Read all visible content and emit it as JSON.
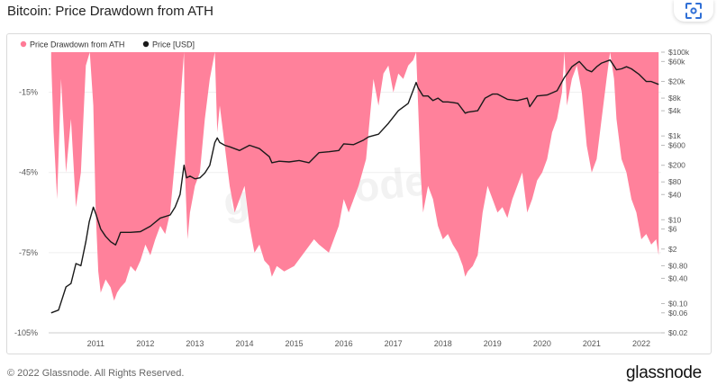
{
  "header": {
    "title": "Bitcoin: Price Drawdown from ATH"
  },
  "footer": {
    "copyright": "© 2022 Glassnode. All Rights Reserved.",
    "logo_text": "glassnode"
  },
  "watermark": "glassnode",
  "icons": {
    "scan": "scan-qr-icon"
  },
  "colors": {
    "drawdown": "#ff7a96",
    "price": "#1a1a1a"
  },
  "chart_data": {
    "type": "area",
    "title": "Bitcoin: Price Drawdown from ATH",
    "legend_position": "top-left",
    "legend": [
      {
        "name": "Price Drawdown from ATH",
        "color": "#ff7a96"
      },
      {
        "name": "Price [USD]",
        "color": "#1a1a1a"
      }
    ],
    "x_ticks": [
      "2011",
      "2012",
      "2013",
      "2014",
      "2015",
      "2016",
      "2017",
      "2018",
      "2019",
      "2020",
      "2021",
      "2022"
    ],
    "y_left_ticks": [
      "-15%",
      "-45%",
      "-75%",
      "-105%"
    ],
    "y_left_range": [
      -105,
      0
    ],
    "y_right_ticks": [
      "$100k",
      "$60k",
      "$20k",
      "$8k",
      "$4k",
      "$1k",
      "$600",
      "$200",
      "$80",
      "$40",
      "$10",
      "$6",
      "$2",
      "$0.80",
      "$0.40",
      "$0.10",
      "$0.06",
      "$0.02"
    ],
    "y_right_scale": "log",
    "y_right_range": [
      0.02,
      100000
    ],
    "series": [
      {
        "name": "Price Drawdown from ATH",
        "unit": "%",
        "x": [
          2010.6,
          2010.65,
          2010.72,
          2010.8,
          2010.9,
          2011.0,
          2011.1,
          2011.2,
          2011.3,
          2011.38,
          2011.45,
          2011.5,
          2011.55,
          2011.6,
          2011.7,
          2011.8,
          2011.87,
          2011.93,
          2012.0,
          2012.1,
          2012.2,
          2012.3,
          2012.4,
          2012.5,
          2012.6,
          2012.7,
          2012.8,
          2012.9,
          2013.0,
          2013.1,
          2013.2,
          2013.28,
          2013.3,
          2013.35,
          2013.4,
          2013.5,
          2013.6,
          2013.7,
          2013.8,
          2013.9,
          2013.95,
          2014.0,
          2014.1,
          2014.2,
          2014.3,
          2014.4,
          2014.5,
          2014.6,
          2014.7,
          2014.8,
          2014.9,
          2015.0,
          2015.05,
          2015.15,
          2015.3,
          2015.5,
          2015.7,
          2015.9,
          2016.0,
          2016.2,
          2016.4,
          2016.5,
          2016.6,
          2016.8,
          2016.95,
          2017.0,
          2017.1,
          2017.2,
          2017.3,
          2017.4,
          2017.5,
          2017.6,
          2017.7,
          2017.8,
          2017.9,
          2017.96,
          2018.0,
          2018.05,
          2018.1,
          2018.2,
          2018.3,
          2018.4,
          2018.5,
          2018.6,
          2018.7,
          2018.8,
          2018.9,
          2018.95,
          2019.0,
          2019.1,
          2019.2,
          2019.3,
          2019.4,
          2019.5,
          2019.6,
          2019.7,
          2019.8,
          2019.9,
          2020.0,
          2020.1,
          2020.2,
          2020.3,
          2020.4,
          2020.5,
          2020.6,
          2020.7,
          2020.8,
          2020.9,
          2020.95,
          2021.0,
          2021.1,
          2021.2,
          2021.3,
          2021.4,
          2021.5,
          2021.6,
          2021.7,
          2021.8,
          2021.87,
          2021.95,
          2022.0,
          2022.1,
          2022.2,
          2022.3,
          2022.4,
          2022.45,
          2022.5,
          2022.6,
          2022.7,
          2022.8,
          2022.85
        ],
        "values": [
          -3,
          -30,
          -55,
          -10,
          -45,
          -25,
          -58,
          -45,
          -5,
          0,
          -20,
          -60,
          -82,
          -90,
          -85,
          -88,
          -93,
          -90,
          -88,
          -86,
          -80,
          -82,
          -78,
          -72,
          -76,
          -70,
          -65,
          -68,
          -60,
          -40,
          -20,
          0,
          -45,
          -70,
          -60,
          -50,
          -45,
          -25,
          -10,
          0,
          -30,
          -20,
          -35,
          -50,
          -60,
          -55,
          -50,
          -65,
          -75,
          -72,
          -78,
          -80,
          -84,
          -80,
          -82,
          -80,
          -75,
          -70,
          -72,
          -75,
          -65,
          -55,
          -60,
          -50,
          -40,
          -30,
          -10,
          -20,
          -8,
          -5,
          -15,
          -8,
          -10,
          -5,
          -3,
          0,
          -20,
          -45,
          -60,
          -50,
          -55,
          -65,
          -70,
          -68,
          -72,
          -75,
          -80,
          -84,
          -82,
          -80,
          -76,
          -60,
          -50,
          -55,
          -60,
          -58,
          -62,
          -55,
          -50,
          -45,
          -60,
          -55,
          -48,
          -45,
          -40,
          -30,
          -25,
          -15,
          0,
          -20,
          -10,
          -5,
          -15,
          -35,
          -45,
          -40,
          -25,
          -10,
          0,
          -10,
          -25,
          -40,
          -45,
          -55,
          -60,
          -65,
          -70,
          -68,
          -72,
          -70,
          -76
        ]
      },
      {
        "name": "Price [USD]",
        "unit": "USD",
        "x": [
          2010.6,
          2010.75,
          2010.9,
          2011.0,
          2011.1,
          2011.2,
          2011.3,
          2011.37,
          2011.45,
          2011.5,
          2011.6,
          2011.7,
          2011.8,
          2011.9,
          2011.95,
          2012.0,
          2012.2,
          2012.4,
          2012.6,
          2012.8,
          2013.0,
          2013.1,
          2013.2,
          2013.28,
          2013.33,
          2013.4,
          2013.5,
          2013.6,
          2013.7,
          2013.8,
          2013.9,
          2013.95,
          2014.0,
          2014.1,
          2014.2,
          2014.4,
          2014.6,
          2014.8,
          2015.0,
          2015.05,
          2015.2,
          2015.4,
          2015.6,
          2015.8,
          2016.0,
          2016.2,
          2016.4,
          2016.5,
          2016.7,
          2016.9,
          2017.0,
          2017.2,
          2017.4,
          2017.6,
          2017.8,
          2017.96,
          2018.0,
          2018.1,
          2018.2,
          2018.3,
          2018.4,
          2018.5,
          2018.6,
          2018.7,
          2018.8,
          2018.95,
          2019.0,
          2019.2,
          2019.35,
          2019.5,
          2019.6,
          2019.8,
          2020.0,
          2020.2,
          2020.25,
          2020.4,
          2020.6,
          2020.8,
          2020.95,
          2021.0,
          2021.1,
          2021.25,
          2021.4,
          2021.5,
          2021.6,
          2021.7,
          2021.87,
          2021.95,
          2022.0,
          2022.1,
          2022.2,
          2022.3,
          2022.45,
          2022.6,
          2022.7,
          2022.85
        ],
        "values": [
          0.06,
          0.07,
          0.25,
          0.3,
          0.9,
          0.8,
          3,
          9,
          20,
          14,
          6,
          4,
          3,
          2.5,
          3.5,
          5,
          5,
          5.2,
          7,
          11,
          13,
          20,
          40,
          200,
          100,
          110,
          95,
          100,
          130,
          200,
          700,
          900,
          700,
          600,
          550,
          450,
          600,
          500,
          320,
          230,
          250,
          240,
          260,
          230,
          400,
          420,
          450,
          650,
          620,
          800,
          950,
          1100,
          2000,
          4000,
          6000,
          19000,
          14000,
          9000,
          9000,
          7000,
          8000,
          6500,
          6500,
          6300,
          6000,
          3500,
          3700,
          4000,
          8000,
          10000,
          10000,
          7500,
          7000,
          8000,
          5000,
          9000,
          9500,
          12000,
          25000,
          30000,
          45000,
          60000,
          38000,
          34000,
          45000,
          55000,
          65000,
          47000,
          38000,
          40000,
          45000,
          40000,
          30000,
          20000,
          20000,
          17000
        ]
      }
    ]
  }
}
